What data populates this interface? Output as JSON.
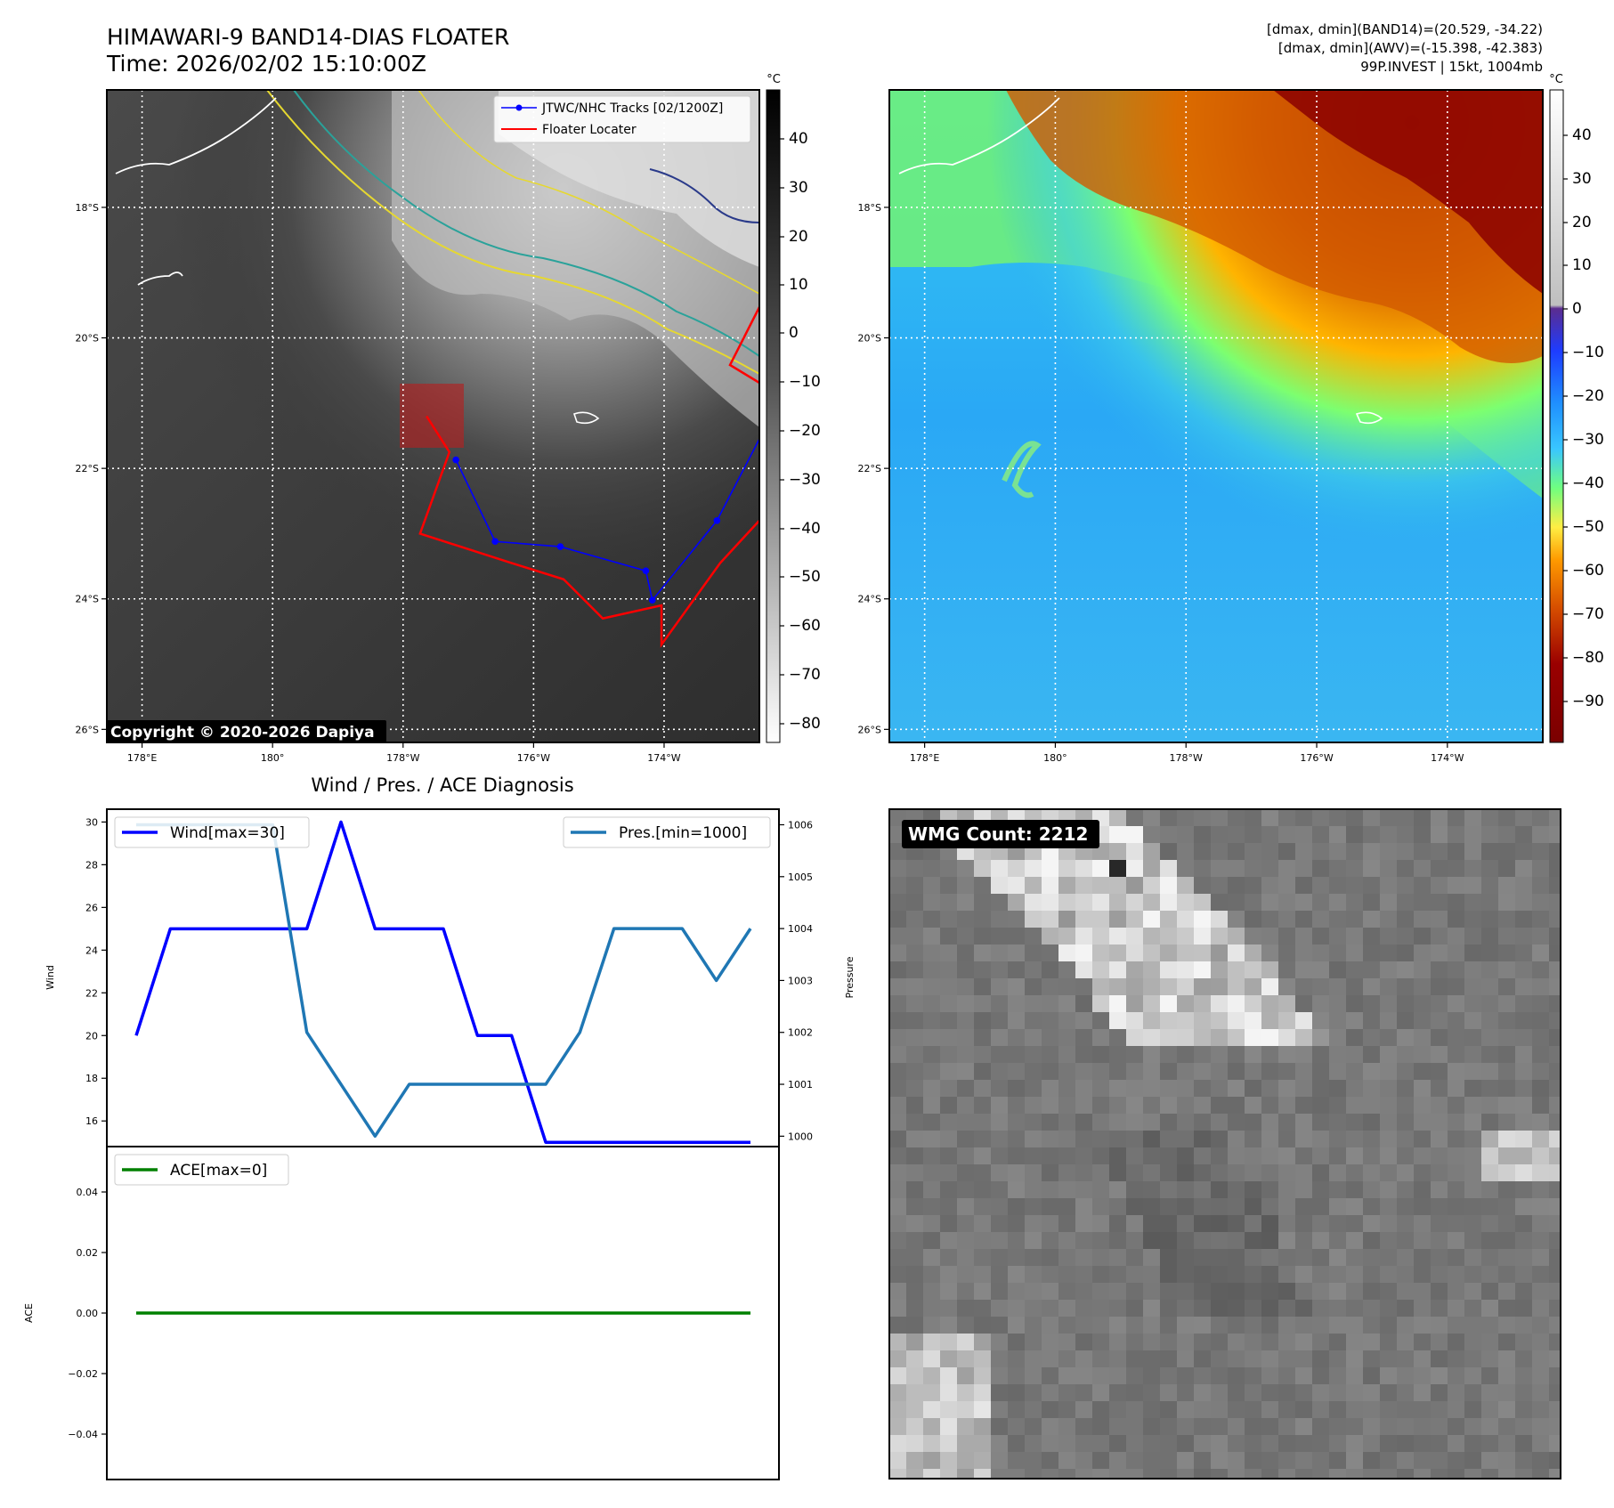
{
  "header": {
    "title_line1": "HIMAWARI-9 BAND14-DIAS FLOATER",
    "title_line2": "Time: 2026/02/02 15:10:00Z",
    "info_line1": "[dmax, dmin](BAND14)=(20.529, -34.22)",
    "info_line2": "[dmax, dmin](AWV)=(-15.398, -42.383)",
    "info_line3": "99P.INVEST | 15kt, 1004mb"
  },
  "map": {
    "x_ticks": [
      "178°E",
      "180°",
      "178°W",
      "176°W",
      "174°W"
    ],
    "y_ticks": [
      "18°S",
      "20°S",
      "22°S",
      "24°S",
      "26°S"
    ],
    "legend_tracks": "JTWC/NHC Tracks [02/1200Z]",
    "legend_floater": "Floater Locater",
    "copyright": "Copyright © 2020-2026 Dapiya",
    "colors": {
      "track": "#0000ff",
      "floater": "#ff0000",
      "box": "#b22222"
    }
  },
  "cbar_gray": {
    "unit": "°C",
    "ticks": [
      "40",
      "30",
      "20",
      "10",
      "0",
      "−10",
      "−20",
      "−30",
      "−40",
      "−50",
      "−60",
      "−70",
      "−80"
    ]
  },
  "cbar_color": {
    "unit": "°C",
    "ticks": [
      "40",
      "30",
      "20",
      "10",
      "0",
      "−10",
      "−20",
      "−30",
      "−40",
      "−50",
      "−60",
      "−70",
      "−80",
      "−90"
    ]
  },
  "diag": {
    "title": "Wind / Pres. / ACE Diagnosis",
    "wind_label": "Wind",
    "pressure_label": "Pressure",
    "ace_label": "ACE",
    "legend_wind": "Wind[max=30]",
    "legend_pres": "Pres.[min=1000]",
    "legend_ace": "ACE[max=0]",
    "wind_ticks": [
      "30",
      "28",
      "26",
      "24",
      "22",
      "20",
      "18",
      "16"
    ],
    "pres_ticks": [
      "1006",
      "1005",
      "1004",
      "1003",
      "1002",
      "1001",
      "1000"
    ],
    "ace_ticks": [
      "0.04",
      "0.02",
      "0.00",
      "−0.02",
      "−0.04"
    ]
  },
  "wmg": {
    "label": "WMG Count: 2212"
  },
  "chart_data": [
    {
      "type": "line",
      "series": [
        {
          "name": "Wind[max=30]",
          "color": "#0000ff",
          "values": [
            20,
            25,
            25,
            25,
            25,
            25,
            30,
            25,
            25,
            25,
            20,
            20,
            15,
            15,
            15,
            15,
            15,
            15,
            15
          ]
        }
      ],
      "ylim": [
        14.8,
        30.6
      ],
      "ylabel": "Wind"
    },
    {
      "type": "line",
      "series": [
        {
          "name": "Pres.[min=1000]",
          "color": "#1f77b4",
          "values": [
            1006,
            1006,
            1006,
            1006,
            1006,
            1002,
            1001,
            1000,
            1001,
            1001,
            1001,
            1001,
            1001,
            1002,
            1004,
            1004,
            1004,
            1003,
            1004
          ]
        }
      ],
      "ylim": [
        999.8,
        1006.3
      ],
      "ylabel": "Pressure"
    },
    {
      "type": "line",
      "series": [
        {
          "name": "ACE[max=0]",
          "color": "#008000",
          "values": [
            0,
            0,
            0,
            0,
            0,
            0,
            0,
            0,
            0,
            0,
            0,
            0,
            0,
            0,
            0,
            0,
            0,
            0,
            0
          ]
        }
      ],
      "ylim": [
        -0.055,
        0.055
      ],
      "ylabel": "ACE"
    }
  ]
}
